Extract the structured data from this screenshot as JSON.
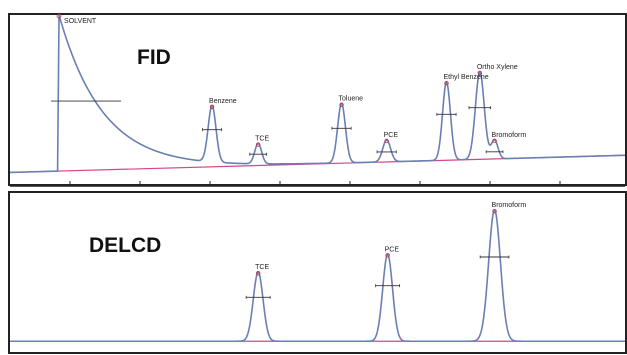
{
  "chart_data": [
    {
      "type": "line",
      "panel_label": "FID",
      "x_range": [
        0,
        627
      ],
      "y_range": [
        0,
        100
      ],
      "grid": false,
      "baseline": {
        "start": 1,
        "end": 12
      },
      "solvent": {
        "label": "SOLVENT",
        "x": 50,
        "height": 100,
        "decay": 45
      },
      "peaks": [
        {
          "label": "Benzene",
          "x": 206,
          "height": 36,
          "width": 4
        },
        {
          "label": "TCE",
          "x": 253,
          "height": 13,
          "width": 3.5
        },
        {
          "label": "Toluene",
          "x": 338,
          "height": 38,
          "width": 4
        },
        {
          "label": "PCE",
          "x": 384,
          "height": 14,
          "width": 4
        },
        {
          "label": "Ethyl Benzene",
          "x": 445,
          "height": 50,
          "width": 4
        },
        {
          "label": "Ortho Xylene",
          "x": 479,
          "height": 56,
          "width": 4.5
        },
        {
          "label": "Bromoform",
          "x": 494,
          "height": 12,
          "width": 3.5
        }
      ]
    },
    {
      "type": "line",
      "panel_label": "DELCD",
      "x_range": [
        0,
        627
      ],
      "y_range": [
        0,
        100
      ],
      "grid": false,
      "baseline": {
        "start": 2,
        "end": 2
      },
      "peaks": [
        {
          "label": "TCE",
          "x": 253,
          "height": 50,
          "width": 5
        },
        {
          "label": "PCE",
          "x": 385,
          "height": 63,
          "width": 5
        },
        {
          "label": "Bromoform",
          "x": 494,
          "height": 95,
          "width": 6
        }
      ]
    }
  ]
}
